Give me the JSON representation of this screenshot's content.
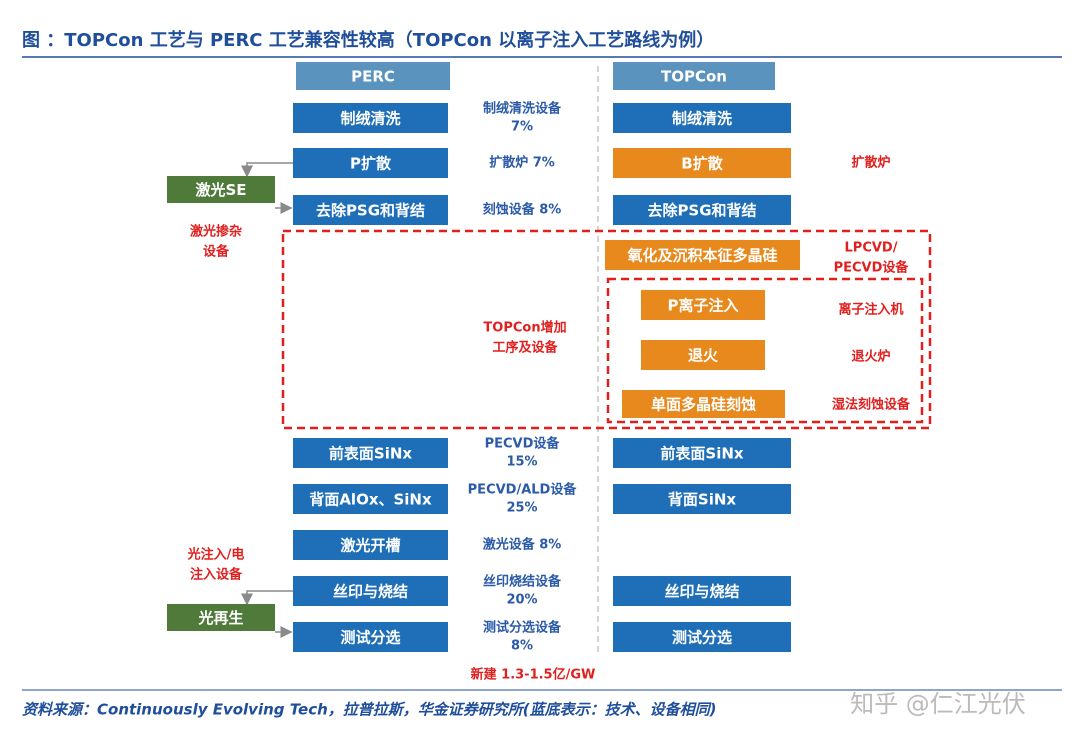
{
  "title": "图 ：TOPCon 工艺与 PERC 工艺兼容性较高（TOPCon 以离子注入工艺路线为例）",
  "perc": {
    "header": "PERC",
    "steps": [
      "制绒清洗",
      "P扩散",
      "去除PSG和背结",
      "前表面SiNx",
      "背面AlOx、SiNx",
      "激光开槽",
      "丝印与烧结",
      "测试分选"
    ]
  },
  "topcon": {
    "header": "TOPCon",
    "steps": [
      "制绒清洗",
      "B扩散",
      "去除PSG和背结",
      "氧化及沉积本征多晶硅",
      "P离子注入",
      "退火",
      "单面多晶硅刻蚀",
      "前表面SiNx",
      "背面SiNx",
      "丝印与烧结",
      "测试分选"
    ]
  },
  "equipment": [
    [
      "制绒清洗设备",
      "7%"
    ],
    [
      "扩散炉 7%"
    ],
    [
      "刻蚀设备 8%"
    ],
    [
      "PECVD设备",
      "15%"
    ],
    [
      "PECVD/ALD设备",
      "25%"
    ],
    [
      "激光设备 8%"
    ],
    [
      "丝印烧结设备",
      "20%"
    ],
    [
      "测试分选设备",
      "8%"
    ]
  ],
  "extra_note": [
    "TOPCon增加",
    "工序及设备"
  ],
  "investment": "新建 1.3-1.5亿/GW",
  "topcon_equipment": [
    [
      "扩散炉"
    ],
    [
      "LPCVD/",
      "PECVD设备"
    ],
    [
      "离子注入机"
    ],
    [
      "退火炉"
    ],
    [
      "湿法刻蚀设备"
    ]
  ],
  "perc_side": [
    {
      "box": "激光SE",
      "label": [
        "激光掺杂",
        "设备"
      ]
    },
    {
      "box": "光再生",
      "label": [
        "光注入/电",
        "注入设备"
      ]
    }
  ],
  "source": "资料来源：Continuously Evolving Tech，拉普拉斯，华金证券研究所(蓝底表示：技术、设备相同)",
  "watermark": "知乎 @仁江光伏"
}
